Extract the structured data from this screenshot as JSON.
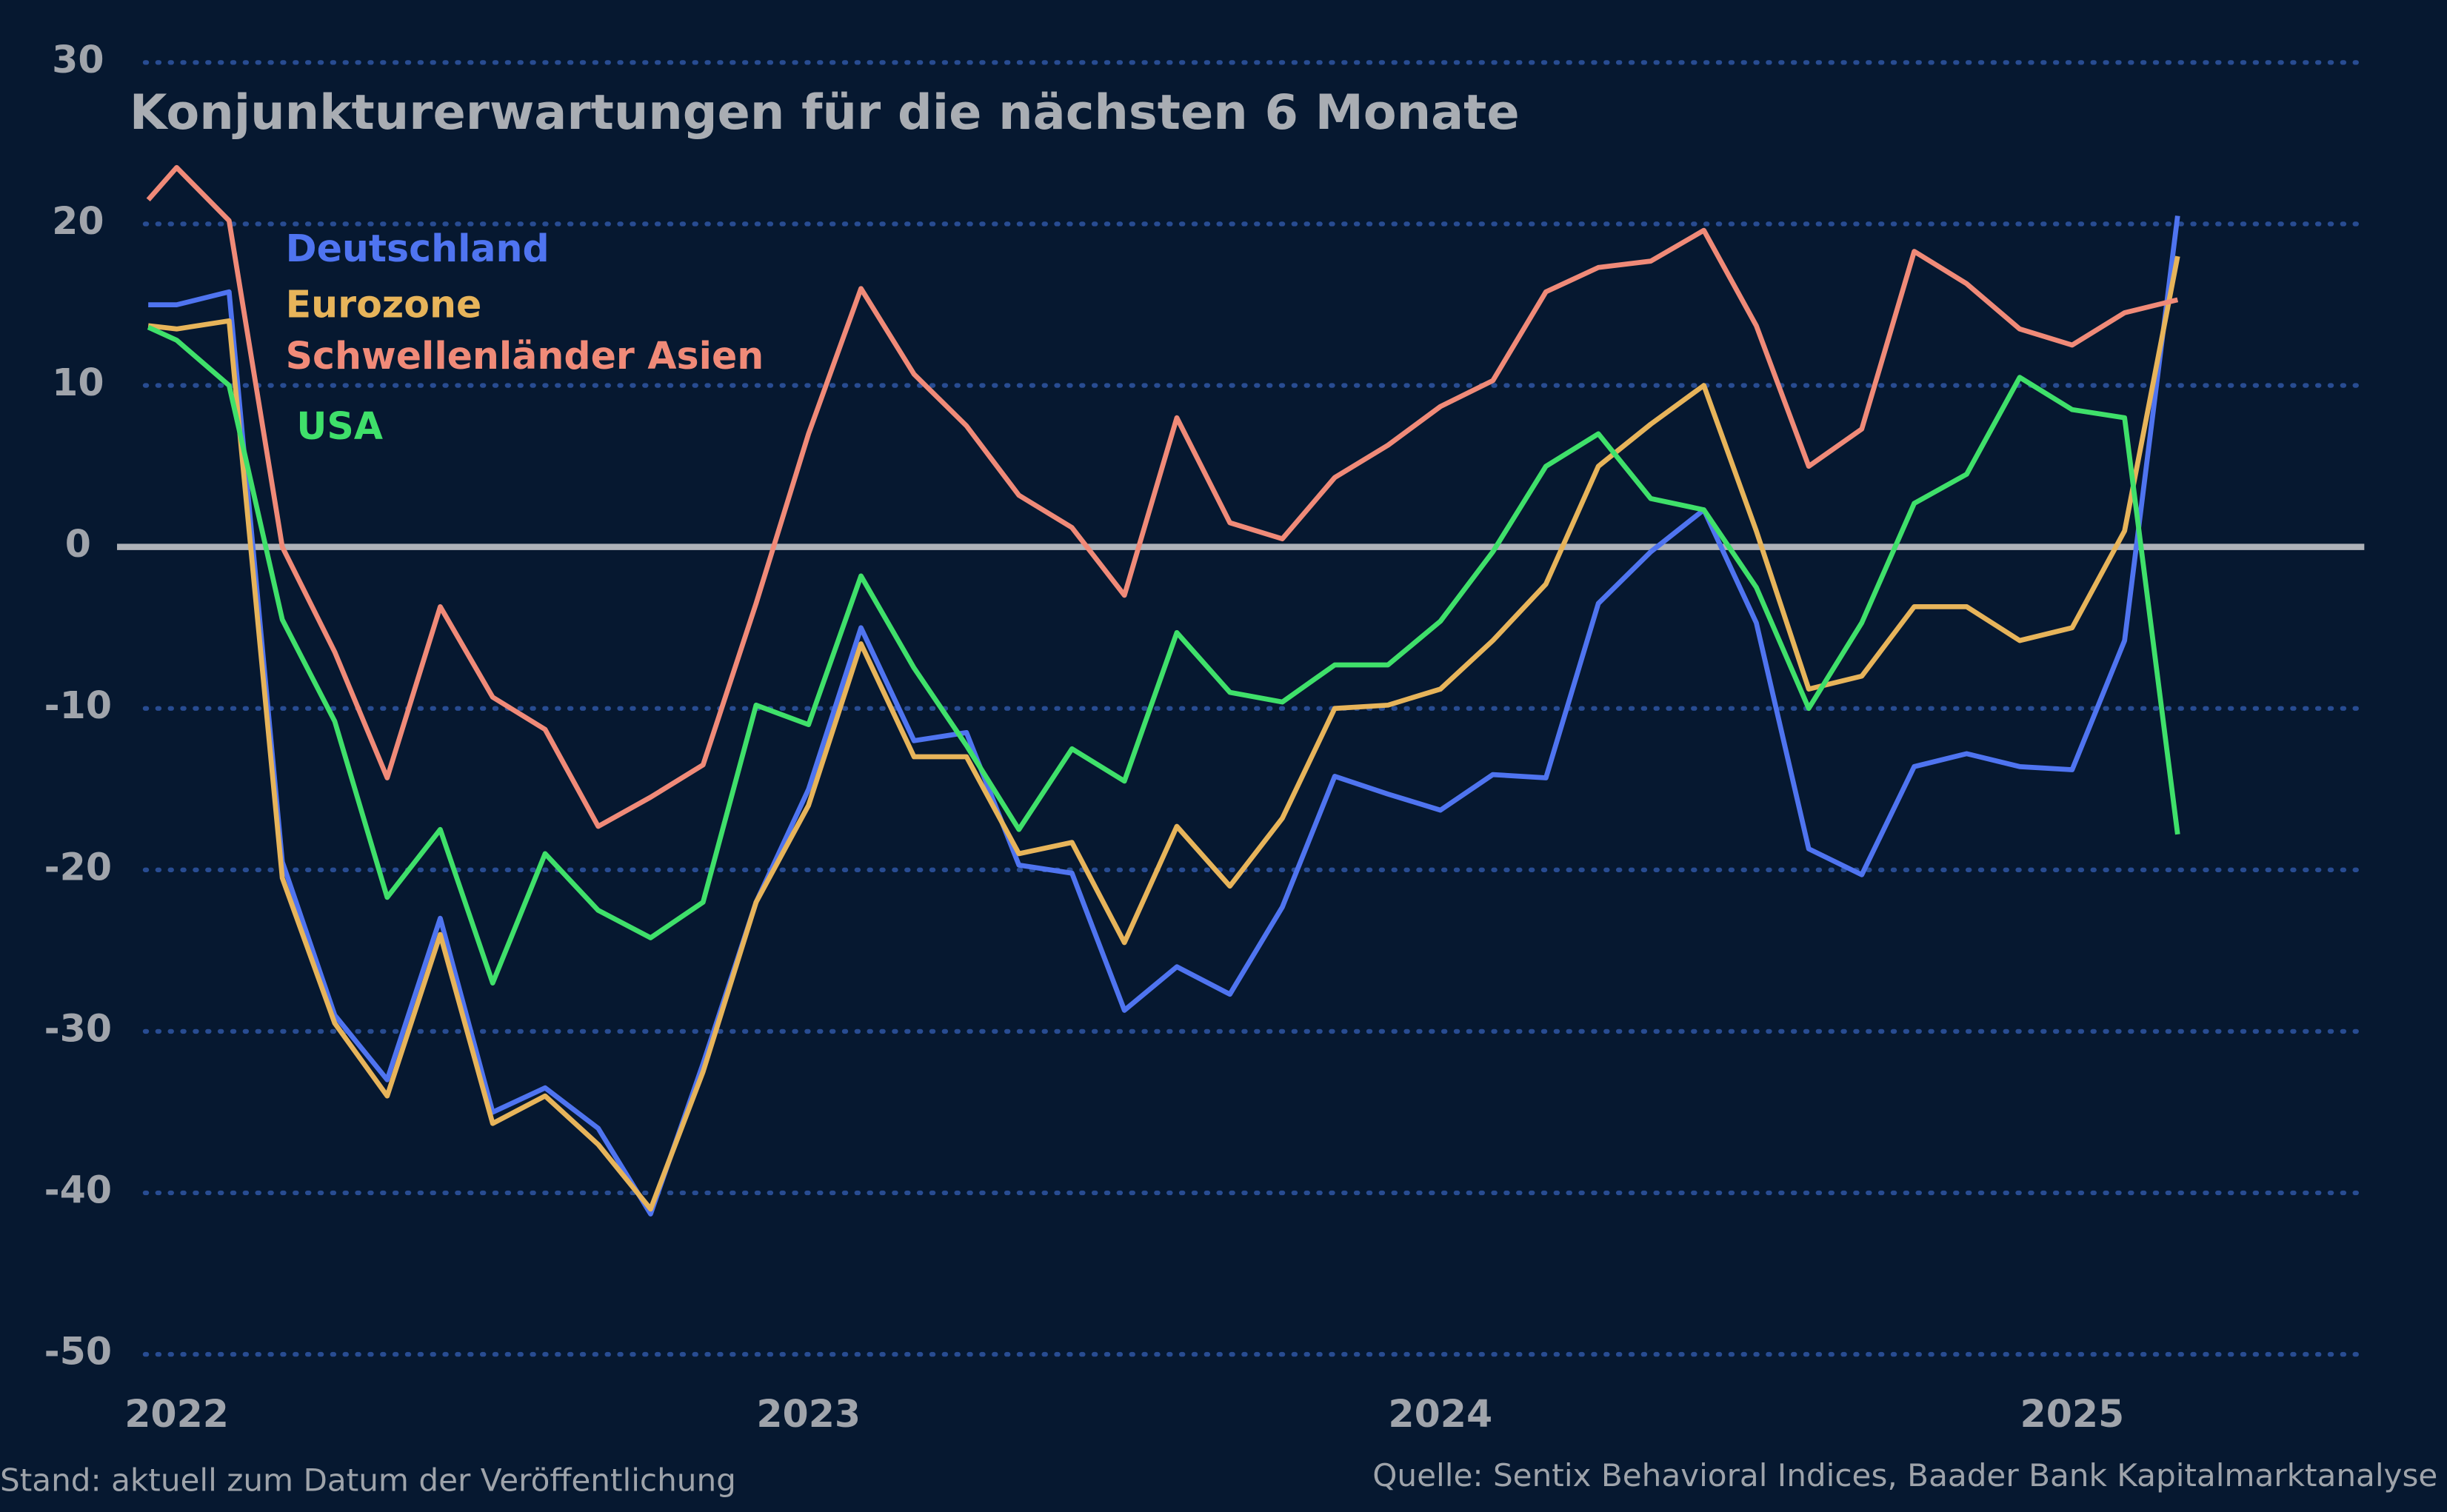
{
  "chart_data": {
    "type": "line",
    "title": "Konjunkturerwartungen für die nächsten 6 Monate",
    "note": "Stand: aktuell zum Datum der Veröffentlichung",
    "source": "Quelle: Sentix Behavioral Indices, Baader Bank Kapitalmarktanalyse",
    "x": [
      2021.955,
      2022,
      2022.083,
      2022.167,
      2022.25,
      2022.333,
      2022.417,
      2022.5,
      2022.583,
      2022.667,
      2022.75,
      2022.833,
      2022.917,
      2023,
      2023.083,
      2023.167,
      2023.25,
      2023.333,
      2023.417,
      2023.5,
      2023.583,
      2023.667,
      2023.75,
      2023.833,
      2023.917,
      2024,
      2024.083,
      2024.167,
      2024.25,
      2024.333,
      2024.417,
      2024.5,
      2024.583,
      2024.667,
      2024.75,
      2024.833,
      2024.917,
      2025,
      2025.083,
      2025.167
    ],
    "series": [
      {
        "name": "Deutschland",
        "color": "#4f74f0",
        "values": [
          15,
          15,
          15.8,
          -19.5,
          -29,
          -33,
          -23,
          -35,
          -33.5,
          -36,
          -41.3,
          -32,
          -22,
          -15,
          -5,
          -12,
          -11.5,
          -19.7,
          -20.2,
          -28.7,
          -26,
          -27.7,
          -22.3,
          -14.2,
          -15.3,
          -16.3,
          -14.1,
          -14.3,
          -3.5,
          -0.3,
          2.3,
          -4.7,
          -18.7,
          -20.3,
          -13.6,
          -12.8,
          -13.6,
          -13.8,
          -5.8,
          20.5
        ]
      },
      {
        "name": "Eurozone",
        "color": "#e7b45a",
        "values": [
          13.7,
          13.5,
          14,
          -20.5,
          -29.5,
          -34,
          -24,
          -35.7,
          -34,
          -37,
          -41,
          -32.5,
          -22,
          -16,
          -6,
          -13,
          -13,
          -19,
          -18.3,
          -24.5,
          -17.3,
          -21,
          -16.8,
          -10,
          -9.8,
          -8.8,
          -5.8,
          -2.3,
          5,
          7.6,
          10,
          1,
          -8.8,
          -8,
          -3.7,
          -3.7,
          -5.8,
          -5,
          1,
          18
        ]
      },
      {
        "name": "Schwellenländer Asien",
        "color": "#f08a78",
        "values": [
          21.5,
          23.5,
          20.2,
          0,
          -6.5,
          -14.3,
          -3.7,
          -9.3,
          -11.3,
          -17.3,
          -15.5,
          -13.5,
          -3.5,
          7,
          16,
          10.7,
          7.5,
          3.2,
          1.2,
          -3,
          8,
          1.5,
          0.5,
          4.3,
          6.3,
          8.7,
          10.3,
          15.8,
          17.3,
          17.7,
          19.6,
          13.7,
          5,
          7.3,
          18.3,
          16.3,
          13.5,
          12.5,
          14.5,
          15.3
        ]
      },
      {
        "name": "USA",
        "color": "#3fe06a",
        "values": [
          13.6,
          12.8,
          10,
          -4.5,
          -10.8,
          -21.7,
          -17.5,
          -27,
          -19,
          -22.5,
          -24.2,
          -22,
          -9.8,
          -11,
          -1.8,
          -7.5,
          -12.3,
          -17.5,
          -12.5,
          -14.5,
          -5.3,
          -9,
          -9.6,
          -7.3,
          -7.3,
          -4.6,
          -0.3,
          5,
          7,
          3,
          2.3,
          -2.5,
          -10,
          -4.7,
          2.7,
          4.5,
          10.5,
          8.5,
          8,
          -17.8
        ]
      }
    ],
    "xlim": [
      2021.95,
      2025.45
    ],
    "xticks": [
      2022,
      2023,
      2024,
      2025
    ],
    "ylim": [
      -50,
      30
    ],
    "yticks": [
      -50,
      -40,
      -30,
      -20,
      -10,
      0,
      10,
      20,
      30
    ],
    "grid": true,
    "legend": "upper left"
  }
}
